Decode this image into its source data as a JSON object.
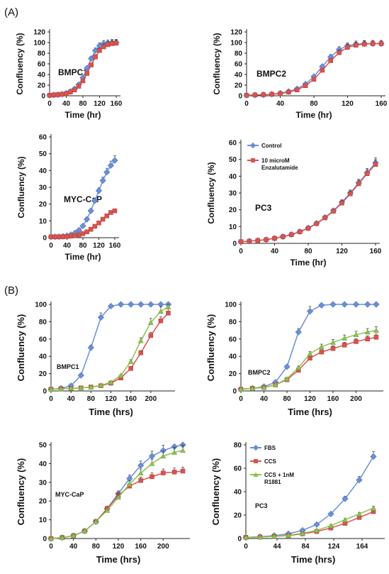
{
  "figure": {
    "panel_a_label": "(A)",
    "panel_b_label": "(B)"
  },
  "chart_data": [
    {
      "type": "line",
      "title": "",
      "cell_label": "BMPC1",
      "xlabel": "Time (hr)",
      "ylabel": "Confluency (%)",
      "xlim": [
        0,
        160
      ],
      "ylim": [
        0,
        120
      ],
      "xticks": [
        0,
        40,
        80,
        120,
        160
      ],
      "yticks": [
        0,
        20,
        40,
        60,
        80,
        100,
        120
      ],
      "x": [
        0,
        10,
        20,
        30,
        40,
        50,
        60,
        70,
        80,
        90,
        100,
        110,
        120,
        130,
        140,
        150,
        160
      ],
      "series": [
        {
          "name": "Control",
          "color": "#6a8fd8",
          "values": [
            1,
            1.5,
            2,
            3,
            5,
            8,
            13,
            21,
            34,
            52,
            70,
            85,
            94,
            98,
            99,
            100,
            100
          ]
        },
        {
          "name": "10 microM Enzalutamide",
          "color": "#d9534f",
          "values": [
            1,
            1.5,
            2,
            3,
            4,
            7,
            11,
            18,
            28,
            42,
            58,
            73,
            85,
            92,
            96,
            98,
            99
          ]
        }
      ]
    },
    {
      "type": "line",
      "title": "",
      "cell_label": "BMPC2",
      "xlabel": "Time (hr)",
      "ylabel": "Confluency (%)",
      "xlim": [
        0,
        160
      ],
      "ylim": [
        0,
        120
      ],
      "xticks": [
        0,
        40,
        80,
        120,
        160
      ],
      "yticks": [
        0,
        20,
        40,
        60,
        80,
        100,
        120
      ],
      "x": [
        0,
        10,
        20,
        30,
        40,
        50,
        60,
        70,
        80,
        90,
        100,
        110,
        120,
        130,
        140,
        150,
        160
      ],
      "series": [
        {
          "name": "Control",
          "color": "#6a8fd8",
          "values": [
            1,
            1.5,
            2,
            3,
            5,
            8,
            13,
            22,
            36,
            55,
            73,
            87,
            94,
            97,
            98,
            98,
            98
          ]
        },
        {
          "name": "10 microM Enzalutamide",
          "color": "#d9534f",
          "values": [
            1,
            1.5,
            2,
            3,
            4,
            7,
            11,
            19,
            31,
            48,
            66,
            81,
            91,
            95,
            97,
            98,
            98
          ]
        }
      ]
    },
    {
      "type": "line",
      "title": "",
      "cell_label": "MYC-CaP",
      "xlabel": "Time (hr)",
      "ylabel": "Confluency (%)",
      "xlim": [
        0,
        160
      ],
      "ylim": [
        0,
        60
      ],
      "xticks": [
        0,
        40,
        80,
        120,
        160
      ],
      "yticks": [
        0,
        10,
        20,
        30,
        40,
        50,
        60
      ],
      "x": [
        0,
        10,
        20,
        30,
        40,
        50,
        60,
        70,
        80,
        90,
        100,
        110,
        120,
        130,
        140,
        150,
        160
      ],
      "series": [
        {
          "name": "Control",
          "color": "#6a8fd8",
          "values": [
            0.5,
            0.5,
            0.6,
            0.8,
            1.2,
            1.8,
            2.8,
            4.5,
            7,
            11,
            16,
            22,
            28,
            34,
            39,
            43,
            46
          ]
        },
        {
          "name": "10 microM Enzalutamide",
          "color": "#d9534f",
          "values": [
            0.5,
            0.5,
            0.5,
            0.6,
            0.7,
            0.9,
            1.2,
            1.7,
            2.4,
            3.5,
            5,
            6.8,
            8.8,
            11,
            13,
            15,
            16
          ]
        }
      ]
    },
    {
      "type": "line",
      "title": "",
      "cell_label": "PC3",
      "xlabel": "Time (hr)",
      "ylabel": "Confluency (%)",
      "xlim": [
        0,
        160
      ],
      "ylim": [
        0,
        60
      ],
      "xticks": [
        0,
        40,
        80,
        120,
        160
      ],
      "yticks": [
        0,
        10,
        20,
        30,
        40,
        50,
        60
      ],
      "legend": [
        "Control",
        "10 microM Enzalutamide"
      ],
      "legend_lines": [
        "Control",
        "10 microM",
        "Enzalutamide"
      ],
      "x": [
        0,
        10,
        20,
        30,
        40,
        50,
        60,
        70,
        80,
        90,
        100,
        110,
        120,
        130,
        140,
        150,
        160
      ],
      "series": [
        {
          "name": "Control",
          "color": "#6a8fd8",
          "values": [
            1,
            1.3,
            1.7,
            2.2,
            3,
            4,
            5.3,
            7,
            9.2,
            12,
            15.5,
            19.5,
            24.5,
            30,
            36,
            42,
            48
          ]
        },
        {
          "name": "10 microM Enzalutamide",
          "color": "#d9534f",
          "values": [
            1,
            1.3,
            1.7,
            2.2,
            3,
            4,
            5.2,
            6.9,
            9,
            11.8,
            15.2,
            19.2,
            24,
            29.5,
            35.5,
            41.5,
            47
          ]
        }
      ]
    },
    {
      "type": "line",
      "title": "",
      "cell_label": "BMPC1",
      "xlabel": "Time (hrs)",
      "ylabel": "Confluency (%)",
      "xlim": [
        0,
        240
      ],
      "ylim": [
        0,
        100
      ],
      "xticks": [
        0,
        40,
        80,
        120,
        160,
        200
      ],
      "yticks": [
        0,
        20,
        40,
        60,
        80,
        100
      ],
      "x": [
        0,
        20,
        40,
        60,
        80,
        100,
        120,
        140,
        160,
        180,
        200,
        220,
        235
      ],
      "series": [
        {
          "name": "FBS",
          "color": "#6a8fd8",
          "values": [
            2,
            3,
            6,
            18,
            50,
            85,
            98,
            100,
            100,
            100,
            100,
            100,
            100
          ]
        },
        {
          "name": "CCS",
          "color": "#d9534f",
          "values": [
            2,
            2.5,
            3,
            3.5,
            4.5,
            6,
            9,
            15,
            26,
            44,
            64,
            81,
            90
          ]
        },
        {
          "name": "CCS + 1nM R1881",
          "color": "#8cc152",
          "values": [
            2,
            2.5,
            3,
            3.5,
            4.5,
            6.5,
            10,
            18,
            34,
            58,
            79,
            92,
            97
          ]
        }
      ]
    },
    {
      "type": "line",
      "title": "",
      "cell_label": "BMPC2",
      "xlabel": "Time (hrs)",
      "ylabel": "Confluency (%)",
      "xlim": [
        0,
        240
      ],
      "ylim": [
        0,
        100
      ],
      "xticks": [
        0,
        40,
        80,
        120,
        160,
        200
      ],
      "yticks": [
        0,
        20,
        40,
        60,
        80,
        100
      ],
      "x": [
        0,
        20,
        40,
        60,
        80,
        100,
        120,
        140,
        160,
        180,
        200,
        220,
        235
      ],
      "series": [
        {
          "name": "FBS",
          "color": "#6a8fd8",
          "values": [
            2,
            3,
            5,
            10,
            28,
            68,
            92,
            99,
            100,
            100,
            100,
            100,
            100
          ]
        },
        {
          "name": "CCS",
          "color": "#d9534f",
          "values": [
            2,
            3,
            4,
            7,
            13,
            24,
            38,
            45,
            49,
            53,
            57,
            60,
            62
          ]
        },
        {
          "name": "CCS + 1nM R1881",
          "color": "#8cc152",
          "values": [
            2,
            3,
            4,
            7,
            14,
            27,
            43,
            51,
            56,
            61,
            65,
            68,
            70
          ]
        }
      ]
    },
    {
      "type": "line",
      "title": "",
      "cell_label": "MYC-CaP",
      "xlabel": "Time (hrs)",
      "ylabel": "Confluency (%)",
      "xlim": [
        0,
        240
      ],
      "ylim": [
        0,
        50
      ],
      "xticks": [
        0,
        40,
        80,
        120,
        160,
        200
      ],
      "yticks": [
        0,
        10,
        20,
        30,
        40,
        50
      ],
      "x": [
        0,
        20,
        40,
        60,
        80,
        100,
        120,
        140,
        160,
        180,
        200,
        220,
        235
      ],
      "series": [
        {
          "name": "FBS",
          "color": "#6a8fd8",
          "values": [
            0,
            0.5,
            1.5,
            4,
            9,
            16,
            24,
            32,
            39,
            44,
            47,
            49,
            50
          ]
        },
        {
          "name": "CCS",
          "color": "#d9534f",
          "values": [
            0,
            0.5,
            1.5,
            4,
            9,
            16,
            23,
            28,
            31,
            33,
            35,
            35.5,
            36
          ]
        },
        {
          "name": "CCS + 1nM R1881",
          "color": "#8cc152",
          "values": [
            0,
            0.5,
            1.5,
            4,
            9,
            15,
            22,
            29,
            35,
            40,
            44,
            46,
            47
          ]
        }
      ]
    },
    {
      "type": "line",
      "title": "",
      "cell_label": "PC3",
      "xlabel": "Time (hrs)",
      "ylabel": "Confluency (%)",
      "xlim": [
        0,
        190
      ],
      "ylim": [
        0,
        80
      ],
      "xticks": [
        0,
        44,
        84,
        124,
        164
      ],
      "yticks": [
        0,
        20,
        40,
        60,
        80
      ],
      "legend": [
        "FBS",
        "CCS",
        "CCS + 1nM R1881"
      ],
      "legend_lines": [
        "FBS",
        "CCS",
        "CCS + 1nM",
        "R1881"
      ],
      "x": [
        0,
        20,
        40,
        60,
        80,
        100,
        120,
        140,
        160,
        180
      ],
      "series": [
        {
          "name": "FBS",
          "color": "#6a8fd8",
          "values": [
            1,
            1.5,
            2.5,
            4,
            7,
            12,
            21,
            34,
            50,
            70
          ]
        },
        {
          "name": "CCS",
          "color": "#d9534f",
          "values": [
            1,
            1.3,
            1.8,
            2.5,
            4,
            6,
            9,
            13,
            18,
            23
          ]
        },
        {
          "name": "CCS + 1nM R1881",
          "color": "#8cc152",
          "values": [
            1,
            1.3,
            1.9,
            2.8,
            4.5,
            7,
            11,
            16,
            21,
            26
          ]
        }
      ]
    }
  ]
}
